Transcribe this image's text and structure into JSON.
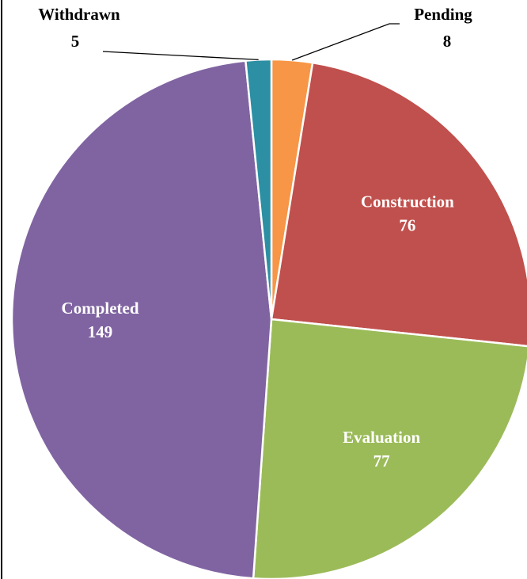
{
  "chart_data": {
    "type": "pie",
    "categories": [
      "Pending",
      "Construction",
      "Evaluation",
      "Completed",
      "Withdrawn"
    ],
    "values": [
      8,
      76,
      77,
      149,
      5
    ],
    "colors": [
      "#f79646",
      "#c0504d",
      "#9bbb59",
      "#8064a2",
      "#2c8fa3"
    ]
  }
}
